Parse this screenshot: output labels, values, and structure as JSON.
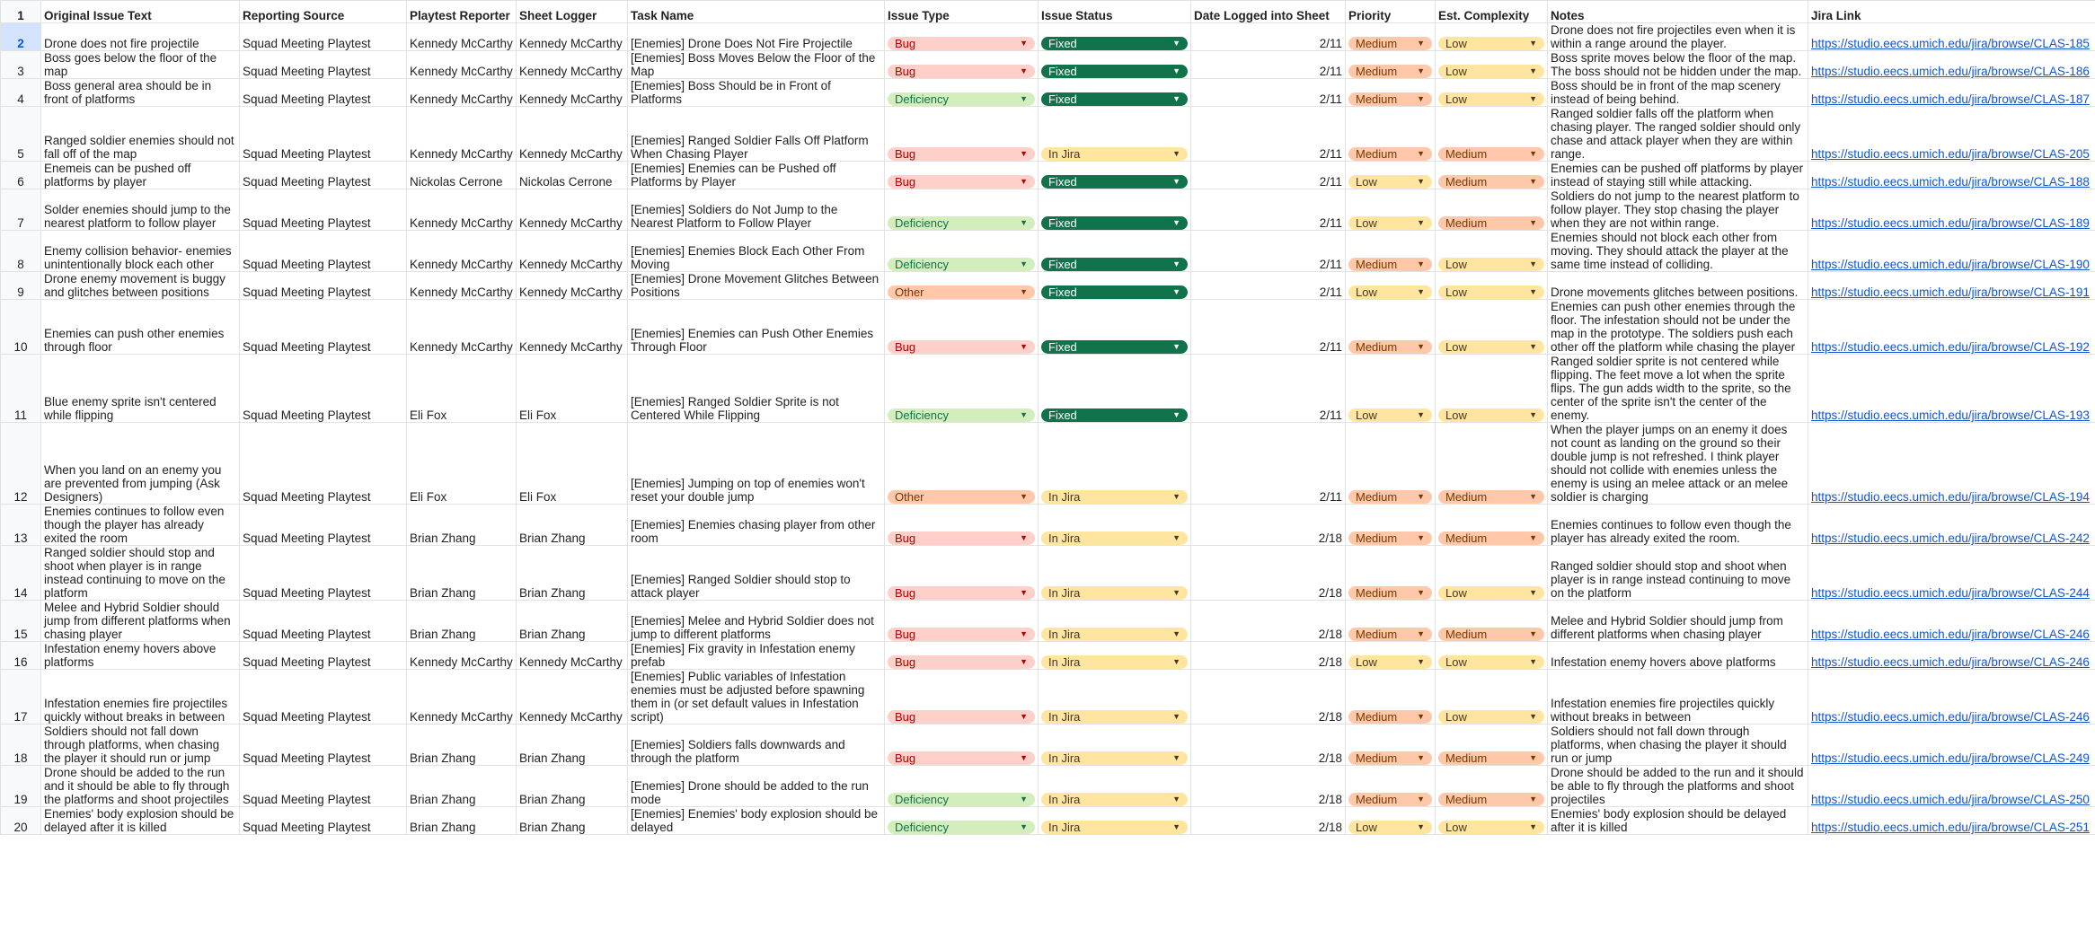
{
  "columns": [
    "Original Issue Text",
    "Reporting Source",
    "Playtest Reporter",
    "Sheet Logger",
    "Task Name",
    "Issue Type",
    "Issue Status",
    "Date Logged into Sheet",
    "Priority",
    "Est. Complexity",
    "Notes",
    "Jira Link"
  ],
  "header_row_number": "1",
  "colors": {
    "bug": "#ffcfc9",
    "deficiency": "#d4edbc",
    "other": "#ffc8aa",
    "fixed": "#11734b",
    "in_jira": "#ffe5a0",
    "medium": "#ffc8aa",
    "low": "#ffe5a0",
    "link": "#1155cc"
  },
  "rows": [
    {
      "num": "2",
      "original": "Drone does not fire projectile",
      "source": "Squad Meeting Playtest",
      "reporter": "Kennedy McCarthy",
      "logger": "Kennedy McCarthy",
      "task": "[Enemies] Drone Does Not Fire Projectile",
      "type": "Bug",
      "status": "Fixed",
      "date": "2/11",
      "priority": "Medium",
      "complexity": "Low",
      "notes": "Drone does not fire projectiles even when it is within a range around the player.",
      "link": "https://studio.eecs.umich.edu/jira/browse/CLAS-185"
    },
    {
      "num": "3",
      "original": "Boss goes below the floor of the map",
      "source": "Squad Meeting Playtest",
      "reporter": "Kennedy McCarthy",
      "logger": "Kennedy McCarthy",
      "task": "[Enemies] Boss Moves Below the Floor of the Map",
      "type": "Bug",
      "status": "Fixed",
      "date": "2/11",
      "priority": "Medium",
      "complexity": "Low",
      "notes": "Boss sprite moves below the floor of the map. The boss should not be hidden under the map.",
      "link": "https://studio.eecs.umich.edu/jira/browse/CLAS-186"
    },
    {
      "num": "4",
      "original": "Boss general area should be in front of platforms",
      "source": "Squad Meeting Playtest",
      "reporter": "Kennedy McCarthy",
      "logger": "Kennedy McCarthy",
      "task": "[Enemies] Boss Should be in Front of Platforms",
      "type": "Deficiency",
      "status": "Fixed",
      "date": "2/11",
      "priority": "Medium",
      "complexity": "Low",
      "notes": "Boss should be in front of the map scenery instead of being behind.",
      "link": "https://studio.eecs.umich.edu/jira/browse/CLAS-187"
    },
    {
      "num": "5",
      "original": "Ranged soldier enemies should not fall off of the map",
      "source": "Squad Meeting Playtest",
      "reporter": "Kennedy McCarthy",
      "logger": "Kennedy McCarthy",
      "task": "[Enemies] Ranged Soldier Falls Off Platform When Chasing Player",
      "type": "Bug",
      "status": "In Jira",
      "date": "2/11",
      "priority": "Medium",
      "complexity": "Medium",
      "notes": "Ranged soldier falls off the platform when chasing player. The ranged soldier should only chase and attack player when they are within range.",
      "link": "https://studio.eecs.umich.edu/jira/browse/CLAS-205"
    },
    {
      "num": "6",
      "original": "Enemeis can be pushed off platforms by player",
      "source": "Squad Meeting Playtest",
      "reporter": "Nickolas Cerrone",
      "logger": "Nickolas Cerrone",
      "task": "[Enemies] Enemies can be Pushed off Platforms by Player",
      "type": "Bug",
      "status": "Fixed",
      "date": "2/11",
      "priority": "Low",
      "complexity": "Medium",
      "notes": "Enemies can be pushed off platforms by player instead of staying still while attacking.",
      "link": "https://studio.eecs.umich.edu/jira/browse/CLAS-188"
    },
    {
      "num": "7",
      "original": "Solder enemies should jump to the nearest platform to follow player",
      "source": "Squad Meeting Playtest",
      "reporter": "Kennedy McCarthy",
      "logger": "Kennedy McCarthy",
      "task": "[Enemies] Soldiers do Not Jump to the Nearest Platform to Follow Player",
      "type": "Deficiency",
      "status": "Fixed",
      "date": "2/11",
      "priority": "Low",
      "complexity": "Medium",
      "notes": "Soldiers do not jump to the nearest platform to follow player. They stop chasing the player when they are not within range.",
      "link": "https://studio.eecs.umich.edu/jira/browse/CLAS-189"
    },
    {
      "num": "8",
      "original": "Enemy collision behavior- enemies unintentionally block each other",
      "source": "Squad Meeting Playtest",
      "reporter": "Kennedy McCarthy",
      "logger": "Kennedy McCarthy",
      "task": "[Enemies] Enemies Block Each Other From Moving",
      "type": "Deficiency",
      "status": "Fixed",
      "date": "2/11",
      "priority": "Medium",
      "complexity": "Low",
      "notes": "Enemies should not block each other from moving. They should attack the player at the same time instead of colliding.",
      "link": "https://studio.eecs.umich.edu/jira/browse/CLAS-190"
    },
    {
      "num": "9",
      "original": "Drone enemy movement is buggy and glitches between positions",
      "source": "Squad Meeting Playtest",
      "reporter": "Kennedy McCarthy",
      "logger": "Kennedy McCarthy",
      "task": "[Enemies] Drone Movement Glitches Between Positions",
      "type": "Other",
      "status": "Fixed",
      "date": "2/11",
      "priority": "Low",
      "complexity": "Low",
      "notes": "Drone movements glitches between positions.",
      "link": "https://studio.eecs.umich.edu/jira/browse/CLAS-191"
    },
    {
      "num": "10",
      "original": "Enemies can push other enemies through floor",
      "source": "Squad Meeting Playtest",
      "reporter": "Kennedy McCarthy",
      "logger": "Kennedy McCarthy",
      "task": "[Enemies] Enemies can Push Other Enemies Through Floor",
      "type": "Bug",
      "status": "Fixed",
      "date": "2/11",
      "priority": "Medium",
      "complexity": "Low",
      "notes": "Enemies can push other enemies through the floor. The infestation should not be under the map in the prototype. The soldiers push each other off the platform while chasing the player",
      "link": "https://studio.eecs.umich.edu/jira/browse/CLAS-192"
    },
    {
      "num": "11",
      "original": "Blue enemy sprite isn't centered while flipping",
      "source": "Squad Meeting Playtest",
      "reporter": "Eli Fox",
      "logger": "Eli Fox",
      "task": "[Enemies] Ranged Soldier Sprite is not Centered While Flipping",
      "type": "Deficiency",
      "status": "Fixed",
      "date": "2/11",
      "priority": "Low",
      "complexity": "Low",
      "notes": "Ranged soldier sprite is not centered while flipping. The feet move a lot when the sprite flips. The gun adds width to the sprite, so the center of the sprite isn't the center of the enemy.",
      "link": "https://studio.eecs.umich.edu/jira/browse/CLAS-193"
    },
    {
      "num": "12",
      "original": "When you land on an enemy you are prevented from jumping  (Ask Designers)",
      "source": "Squad Meeting Playtest",
      "reporter": "Eli Fox",
      "logger": "Eli Fox",
      "task": "[Enemies] Jumping on top of enemies won't reset your double jump",
      "type": "Other",
      "status": "In Jira",
      "date": "2/11",
      "priority": "Medium",
      "complexity": "Medium",
      "notes": "When the player jumps on an enemy it does not count as landing on the ground so their double jump is not refreshed. I think player should not collide with enemies unless the enemy is using an melee attack or an melee soldier is charging",
      "link": "https://studio.eecs.umich.edu/jira/browse/CLAS-194"
    },
    {
      "num": "13",
      "original": "Enemies continues to follow even though the player has already exited the room",
      "source": "Squad Meeting Playtest",
      "reporter": "Brian Zhang",
      "logger": "Brian Zhang",
      "task": "[Enemies] Enemies chasing player from other room",
      "type": "Bug",
      "status": "In Jira",
      "date": "2/18",
      "priority": "Medium",
      "complexity": "Medium",
      "notes": "Enemies continues to follow even though the player has already exited the room.",
      "link": "https://studio.eecs.umich.edu/jira/browse/CLAS-242"
    },
    {
      "num": "14",
      "original": "Ranged soldier should stop and shoot when player is in range instead continuing to move on the platform",
      "source": "Squad Meeting Playtest",
      "reporter": "Brian Zhang",
      "logger": "Brian Zhang",
      "task": "[Enemies] Ranged Soldier should stop to attack player",
      "type": "Bug",
      "status": "In Jira",
      "date": "2/18",
      "priority": "Medium",
      "complexity": "Low",
      "notes": "Ranged soldier should stop and shoot when player is in range instead continuing to move on the platform",
      "link": "https://studio.eecs.umich.edu/jira/browse/CLAS-244"
    },
    {
      "num": "15",
      "original": "Melee and Hybrid Soldier should jump from different platforms when chasing player",
      "source": "Squad Meeting Playtest",
      "reporter": "Brian Zhang",
      "logger": "Brian Zhang",
      "task": "[Enemies] Melee and Hybrid Soldier does not jump to different platforms",
      "type": "Bug",
      "status": "In Jira",
      "date": "2/18",
      "priority": "Medium",
      "complexity": "Medium",
      "notes": "Melee and Hybrid Soldier should jump from different platforms when chasing player",
      "link": "https://studio.eecs.umich.edu/jira/browse/CLAS-246"
    },
    {
      "num": "16",
      "original": "Infestation enemy hovers above platforms",
      "source": "Squad Meeting Playtest",
      "reporter": "Kennedy McCarthy",
      "logger": "Kennedy McCarthy",
      "task": "[Enemies] Fix gravity in Infestation enemy prefab",
      "type": "Bug",
      "status": "In Jira",
      "date": "2/18",
      "priority": "Low",
      "complexity": "Low",
      "notes": "Infestation enemy hovers above platforms",
      "link": "https://studio.eecs.umich.edu/jira/browse/CLAS-246"
    },
    {
      "num": "17",
      "original": "Infestation enemies fire projectiles quickly without breaks in between",
      "source": "Squad Meeting Playtest",
      "reporter": "Kennedy McCarthy",
      "logger": "Kennedy McCarthy",
      "task": "[Enemies] Public variables of Infestation enemies must be adjusted before spawning them in (or set default values in Infestation script)",
      "type": "Bug",
      "status": "In Jira",
      "date": "2/18",
      "priority": "Medium",
      "complexity": "Low",
      "notes": "Infestation enemies fire projectiles quickly without breaks in between",
      "link": "https://studio.eecs.umich.edu/jira/browse/CLAS-246"
    },
    {
      "num": "18",
      "original": "Soldiers should not fall down through platforms, when chasing the player it should run or jump",
      "source": "Squad Meeting Playtest",
      "reporter": "Brian Zhang",
      "logger": "Brian Zhang",
      "task": "[Enemies] Soldiers falls downwards and through the platform",
      "type": "Bug",
      "status": "In Jira",
      "date": "2/18",
      "priority": "Medium",
      "complexity": "Medium",
      "notes": "Soldiers should not fall down through platforms, when chasing the player it should run or jump",
      "link": "https://studio.eecs.umich.edu/jira/browse/CLAS-249"
    },
    {
      "num": "19",
      "original": "Drone should be added to the run and it should be able to fly through the platforms and shoot projectiles",
      "source": "Squad Meeting Playtest",
      "reporter": "Brian Zhang",
      "logger": "Brian Zhang",
      "task": "[Enemies] Drone should be added to the run mode",
      "type": "Deficiency",
      "status": "In Jira",
      "date": "2/18",
      "priority": "Medium",
      "complexity": "Medium",
      "notes": "Drone should be added to the run and it should be able to fly through the platforms and shoot projectiles",
      "link": "https://studio.eecs.umich.edu/jira/browse/CLAS-250"
    },
    {
      "num": "20",
      "original": "Enemies' body explosion should be delayed after it is killed",
      "source": "Squad Meeting Playtest",
      "reporter": "Brian Zhang",
      "logger": "Brian Zhang",
      "task": "[Enemies] Enemies' body explosion should be delayed",
      "type": "Deficiency",
      "status": "In Jira",
      "date": "2/18",
      "priority": "Low",
      "complexity": "Low",
      "notes": "Enemies' body explosion should be delayed after it is killed",
      "link": "https://studio.eecs.umich.edu/jira/browse/CLAS-251"
    }
  ]
}
